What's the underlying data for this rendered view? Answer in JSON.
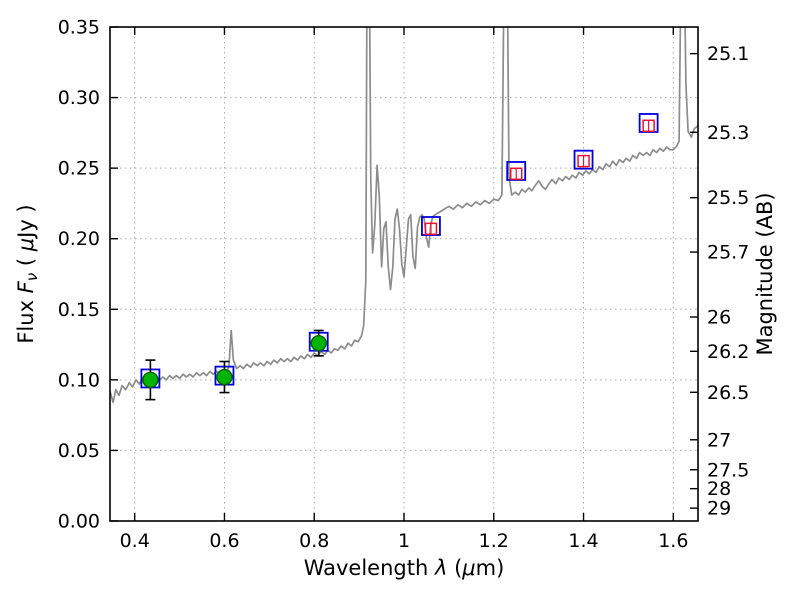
{
  "chart_data": {
    "type": "line",
    "title": "",
    "xlabel": {
      "prefix": "Wavelength  ",
      "symbol": "λ",
      "mid": " (",
      "mu": "μ",
      "suffix": "m)"
    },
    "ylabel_left": {
      "prefix": "Flux  ",
      "symbol": "F",
      "sub": "ν",
      "mid": "  ( ",
      "mu": "μ",
      "suffix": "Jy )"
    },
    "ylabel_right": "Magnitude (AB)",
    "xlim": [
      0.345,
      1.655
    ],
    "ylim_flux": [
      0.0,
      0.35
    ],
    "x_ticks": [
      0.4,
      0.6,
      0.8,
      1,
      1.2,
      1.4,
      1.6
    ],
    "x_tick_labels": [
      "0.4",
      "0.6",
      "0.8",
      "1",
      "1.2",
      "1.4",
      "1.6"
    ],
    "y_ticks_flux": [
      0.0,
      0.05,
      0.1,
      0.15,
      0.2,
      0.25,
      0.3,
      0.35
    ],
    "y_tick_labels_flux": [
      "0.00",
      "0.05",
      "0.10",
      "0.15",
      "0.20",
      "0.25",
      "0.30",
      "0.35"
    ],
    "y_ticks_mag": [
      25.1,
      25.3,
      25.5,
      25.7,
      26,
      26.2,
      26.5,
      27,
      27.5,
      28,
      29
    ],
    "y_tick_labels_mag": [
      "25.1",
      "25.3",
      "25.5",
      "25.7",
      "26",
      "26.2",
      "26.5",
      "27",
      "27.5",
      "28",
      "29"
    ],
    "mag_zeropoint": 23.9,
    "grid": true,
    "legend": "none",
    "colors": {
      "spectrum": "#8c8c8c",
      "circle_fill": "#00b300",
      "circle_edge": "#006600",
      "model_square": "#0000dd",
      "observed_square": "#ee1133",
      "error_bar": "#000000",
      "grid": "#a8a8a8",
      "axis": "#000000",
      "background": "#ffffff"
    },
    "series": [
      {
        "name": "model-spectrum",
        "type": "line",
        "points": [
          [
            0.345,
            0.092
          ],
          [
            0.352,
            0.084
          ],
          [
            0.358,
            0.093
          ],
          [
            0.365,
            0.089
          ],
          [
            0.372,
            0.096
          ],
          [
            0.38,
            0.093
          ],
          [
            0.388,
            0.098
          ],
          [
            0.395,
            0.095
          ],
          [
            0.403,
            0.1
          ],
          [
            0.41,
            0.097
          ],
          [
            0.418,
            0.101
          ],
          [
            0.425,
            0.098
          ],
          [
            0.433,
            0.1
          ],
          [
            0.44,
            0.099
          ],
          [
            0.448,
            0.102
          ],
          [
            0.455,
            0.1
          ],
          [
            0.463,
            0.102
          ],
          [
            0.47,
            0.1
          ],
          [
            0.478,
            0.103
          ],
          [
            0.485,
            0.101
          ],
          [
            0.493,
            0.103
          ],
          [
            0.5,
            0.101
          ],
          [
            0.508,
            0.104
          ],
          [
            0.515,
            0.102
          ],
          [
            0.523,
            0.104
          ],
          [
            0.53,
            0.102
          ],
          [
            0.538,
            0.105
          ],
          [
            0.545,
            0.103
          ],
          [
            0.553,
            0.105
          ],
          [
            0.56,
            0.103
          ],
          [
            0.568,
            0.106
          ],
          [
            0.575,
            0.104
          ],
          [
            0.583,
            0.106
          ],
          [
            0.59,
            0.104
          ],
          [
            0.598,
            0.107
          ],
          [
            0.605,
            0.106
          ],
          [
            0.61,
            0.109
          ],
          [
            0.615,
            0.135
          ],
          [
            0.62,
            0.114
          ],
          [
            0.627,
            0.108
          ],
          [
            0.635,
            0.11
          ],
          [
            0.642,
            0.108
          ],
          [
            0.65,
            0.111
          ],
          [
            0.658,
            0.109
          ],
          [
            0.665,
            0.112
          ],
          [
            0.673,
            0.11
          ],
          [
            0.68,
            0.112
          ],
          [
            0.688,
            0.11
          ],
          [
            0.695,
            0.113
          ],
          [
            0.703,
            0.111
          ],
          [
            0.71,
            0.114
          ],
          [
            0.718,
            0.112
          ],
          [
            0.725,
            0.115
          ],
          [
            0.733,
            0.113
          ],
          [
            0.74,
            0.115
          ],
          [
            0.748,
            0.113
          ],
          [
            0.755,
            0.116
          ],
          [
            0.763,
            0.114
          ],
          [
            0.77,
            0.117
          ],
          [
            0.778,
            0.115
          ],
          [
            0.785,
            0.118
          ],
          [
            0.793,
            0.116
          ],
          [
            0.8,
            0.119
          ],
          [
            0.808,
            0.117
          ],
          [
            0.815,
            0.12
          ],
          [
            0.823,
            0.118
          ],
          [
            0.83,
            0.121
          ],
          [
            0.838,
            0.119
          ],
          [
            0.845,
            0.122
          ],
          [
            0.853,
            0.121
          ],
          [
            0.86,
            0.124
          ],
          [
            0.868,
            0.122
          ],
          [
            0.875,
            0.126
          ],
          [
            0.883,
            0.124
          ],
          [
            0.89,
            0.128
          ],
          [
            0.898,
            0.127
          ],
          [
            0.905,
            0.131
          ],
          [
            0.91,
            0.138
          ],
          [
            0.915,
            0.17
          ],
          [
            0.918,
            0.42
          ],
          [
            0.922,
            0.43
          ],
          [
            0.926,
            0.24
          ],
          [
            0.93,
            0.19
          ],
          [
            0.935,
            0.21
          ],
          [
            0.94,
            0.252
          ],
          [
            0.945,
            0.23
          ],
          [
            0.95,
            0.18
          ],
          [
            0.955,
            0.207
          ],
          [
            0.96,
            0.212
          ],
          [
            0.965,
            0.18
          ],
          [
            0.97,
            0.164
          ],
          [
            0.975,
            0.18
          ],
          [
            0.98,
            0.214
          ],
          [
            0.985,
            0.221
          ],
          [
            0.99,
            0.207
          ],
          [
            0.995,
            0.182
          ],
          [
            1.0,
            0.173
          ],
          [
            1.005,
            0.193
          ],
          [
            1.01,
            0.214
          ],
          [
            1.015,
            0.217
          ],
          [
            1.02,
            0.187
          ],
          [
            1.025,
            0.179
          ],
          [
            1.03,
            0.208
          ],
          [
            1.035,
            0.215
          ],
          [
            1.04,
            0.217
          ],
          [
            1.045,
            0.214
          ],
          [
            1.05,
            0.201
          ],
          [
            1.055,
            0.194
          ],
          [
            1.06,
            0.211
          ],
          [
            1.065,
            0.216
          ],
          [
            1.07,
            0.217
          ],
          [
            1.08,
            0.219
          ],
          [
            1.09,
            0.221
          ],
          [
            1.1,
            0.223
          ],
          [
            1.11,
            0.221
          ],
          [
            1.12,
            0.224
          ],
          [
            1.13,
            0.222
          ],
          [
            1.14,
            0.225
          ],
          [
            1.15,
            0.223
          ],
          [
            1.16,
            0.226
          ],
          [
            1.17,
            0.224
          ],
          [
            1.18,
            0.227
          ],
          [
            1.19,
            0.225
          ],
          [
            1.2,
            0.228
          ],
          [
            1.21,
            0.227
          ],
          [
            1.218,
            0.231
          ],
          [
            1.224,
            0.42
          ],
          [
            1.229,
            0.43
          ],
          [
            1.234,
            0.244
          ],
          [
            1.24,
            0.231
          ],
          [
            1.248,
            0.233
          ],
          [
            1.255,
            0.231
          ],
          [
            1.263,
            0.235
          ],
          [
            1.27,
            0.233
          ],
          [
            1.278,
            0.236
          ],
          [
            1.285,
            0.234
          ],
          [
            1.293,
            0.238
          ],
          [
            1.3,
            0.241
          ],
          [
            1.308,
            0.237
          ],
          [
            1.315,
            0.235
          ],
          [
            1.323,
            0.239
          ],
          [
            1.33,
            0.242
          ],
          [
            1.338,
            0.239
          ],
          [
            1.345,
            0.243
          ],
          [
            1.353,
            0.241
          ],
          [
            1.36,
            0.244
          ],
          [
            1.368,
            0.242
          ],
          [
            1.375,
            0.245
          ],
          [
            1.383,
            0.243
          ],
          [
            1.39,
            0.247
          ],
          [
            1.398,
            0.245
          ],
          [
            1.405,
            0.248
          ],
          [
            1.413,
            0.246
          ],
          [
            1.42,
            0.249
          ],
          [
            1.428,
            0.247
          ],
          [
            1.435,
            0.251
          ],
          [
            1.443,
            0.249
          ],
          [
            1.45,
            0.253
          ],
          [
            1.458,
            0.251
          ],
          [
            1.465,
            0.255
          ],
          [
            1.473,
            0.252
          ],
          [
            1.48,
            0.256
          ],
          [
            1.488,
            0.254
          ],
          [
            1.495,
            0.257
          ],
          [
            1.503,
            0.255
          ],
          [
            1.51,
            0.259
          ],
          [
            1.518,
            0.257
          ],
          [
            1.525,
            0.261
          ],
          [
            1.533,
            0.259
          ],
          [
            1.54,
            0.261
          ],
          [
            1.548,
            0.259
          ],
          [
            1.555,
            0.263
          ],
          [
            1.563,
            0.261
          ],
          [
            1.57,
            0.264
          ],
          [
            1.578,
            0.262
          ],
          [
            1.585,
            0.265
          ],
          [
            1.593,
            0.263
          ],
          [
            1.6,
            0.263
          ],
          [
            1.608,
            0.266
          ],
          [
            1.613,
            0.269
          ],
          [
            1.618,
            0.42
          ],
          [
            1.623,
            0.43
          ],
          [
            1.628,
            0.31
          ],
          [
            1.633,
            0.276
          ],
          [
            1.64,
            0.272
          ],
          [
            1.647,
            0.278
          ],
          [
            1.655,
            0.28
          ]
        ]
      },
      {
        "name": "observed-photometry-optical",
        "type": "scatter",
        "marker": "filled-circle-green",
        "points": [
          {
            "x": 0.435,
            "flux": 0.1,
            "err": 0.014
          },
          {
            "x": 0.6,
            "flux": 0.102,
            "err": 0.011
          },
          {
            "x": 0.81,
            "flux": 0.126,
            "err": 0.009
          }
        ]
      },
      {
        "name": "observed-photometry-infrared",
        "type": "scatter",
        "marker": "open-square-red",
        "points": [
          {
            "x": 1.06,
            "flux": 0.207,
            "err": 0.004
          },
          {
            "x": 1.25,
            "flux": 0.246,
            "err": 0.004
          },
          {
            "x": 1.4,
            "flux": 0.255,
            "err": 0.004
          },
          {
            "x": 1.545,
            "flux": 0.28,
            "err": 0.004
          }
        ]
      },
      {
        "name": "model-photometry",
        "type": "scatter",
        "marker": "open-square-blue",
        "points": [
          {
            "x": 0.435,
            "flux": 0.101
          },
          {
            "x": 0.6,
            "flux": 0.103
          },
          {
            "x": 0.81,
            "flux": 0.127
          },
          {
            "x": 1.06,
            "flux": 0.209
          },
          {
            "x": 1.25,
            "flux": 0.248
          },
          {
            "x": 1.4,
            "flux": 0.256
          },
          {
            "x": 1.545,
            "flux": 0.282
          }
        ]
      }
    ]
  }
}
